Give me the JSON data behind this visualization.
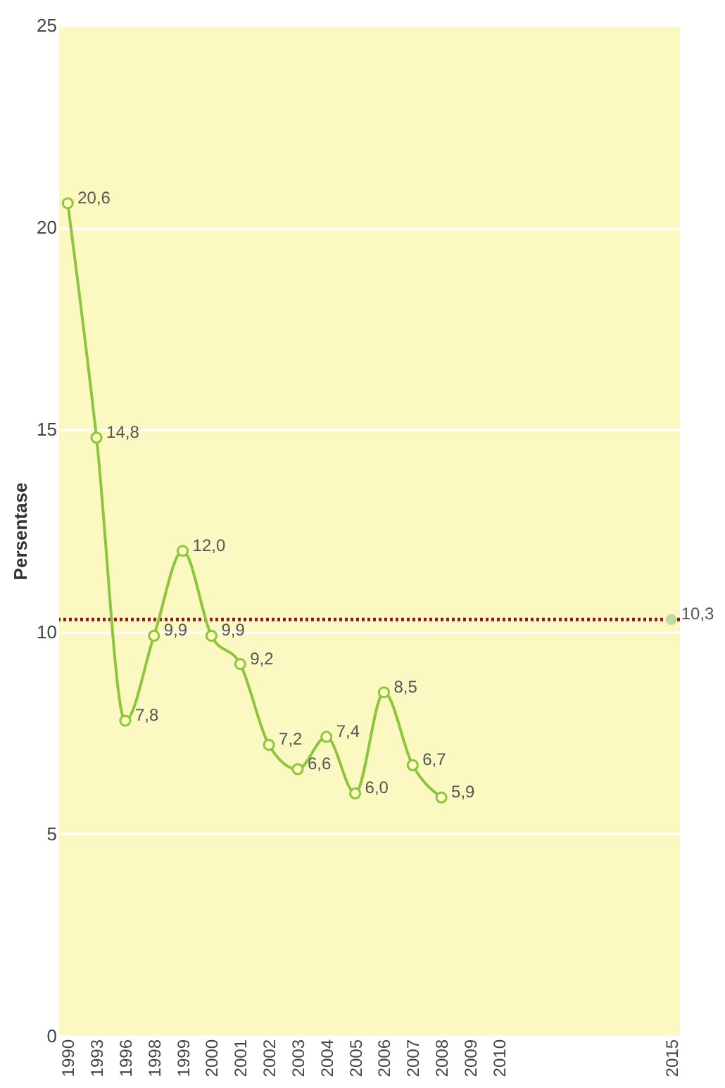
{
  "chart_data": {
    "type": "line",
    "ylabel": "Persentase",
    "categories": [
      "1990",
      "1993",
      "1996",
      "1998",
      "1999",
      "2000",
      "2001",
      "2002",
      "2003",
      "2004",
      "2005",
      "2006",
      "2007",
      "2008",
      "2009",
      "2010",
      null,
      null,
      null,
      null,
      null,
      "2015"
    ],
    "series": [
      {
        "color": "#8cc63f",
        "values": [
          20.6,
          14.8,
          7.8,
          9.9,
          12.0,
          9.9,
          9.2,
          7.2,
          6.6,
          7.4,
          6.0,
          8.5,
          6.7,
          5.9,
          null,
          null,
          null,
          null,
          null,
          null,
          null,
          null
        ],
        "value_labels": [
          "20,6",
          "14,8",
          "7,8",
          "9,9",
          "12,0",
          "9,9",
          "9,2",
          "7,2",
          "6,6",
          "7,4",
          "6,0",
          "8,5",
          "6,7",
          "5,9",
          null,
          null,
          null,
          null,
          null,
          null,
          null,
          null
        ]
      },
      {
        "type": "scatter",
        "color": "#b9dca0",
        "values": [
          null,
          null,
          null,
          null,
          null,
          null,
          null,
          null,
          null,
          null,
          null,
          null,
          null,
          null,
          null,
          null,
          null,
          null,
          null,
          null,
          null,
          10.3
        ],
        "value_labels": [
          null,
          null,
          null,
          null,
          null,
          null,
          null,
          null,
          null,
          null,
          null,
          null,
          null,
          null,
          null,
          null,
          null,
          null,
          null,
          null,
          null,
          "10,3"
        ]
      }
    ],
    "ref_lines": [
      {
        "axis": "y",
        "value": 10.3,
        "color": "#8b1a1a",
        "line_style": "dotted"
      }
    ],
    "ylim": [
      0,
      25
    ],
    "yticks": [
      0,
      5,
      10,
      15,
      20,
      25
    ],
    "grid": "y",
    "marker": "circle",
    "line_style": "solid"
  }
}
